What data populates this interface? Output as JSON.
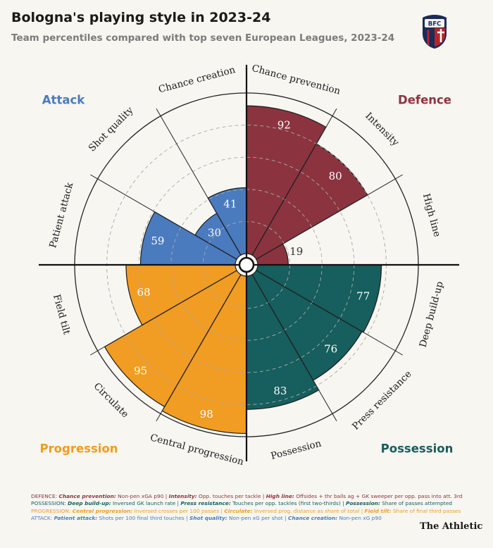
{
  "title": "Bologna's playing style in 2023-24",
  "subtitle": "Team percentiles compared with top seven European Leagues, 2023-24",
  "logo_text": "BFC 1909",
  "brand": "The Athletic",
  "colors": {
    "defence": "#8b3440",
    "possession": "#175e5e",
    "progression": "#f19c22",
    "attack": "#4a7bbf",
    "background": "#f7f6f1",
    "bar_text": "#ffffff"
  },
  "categories": [
    {
      "key": "attack",
      "label": "Attack"
    },
    {
      "key": "defence",
      "label": "Defence"
    },
    {
      "key": "progression",
      "label": "Progression"
    },
    {
      "key": "possession",
      "label": "Possession"
    }
  ],
  "chart_data": {
    "type": "polar-bar",
    "title": "Bologna's playing style in 2023-24",
    "subtitle": "Team percentiles compared with top seven European Leagues, 2023-24",
    "rlim": [
      0,
      100
    ],
    "gridlines": [
      20,
      40,
      60,
      80,
      100
    ],
    "grid": true,
    "series": [
      {
        "label": "Chance prevention",
        "category": "defence",
        "value": 92
      },
      {
        "label": "Intensity",
        "category": "defence",
        "value": 80
      },
      {
        "label": "High line",
        "category": "defence",
        "value": 19
      },
      {
        "label": "Deep build-up",
        "category": "possession",
        "value": 77
      },
      {
        "label": "Press resistance",
        "category": "possession",
        "value": 76
      },
      {
        "label": "Possession",
        "category": "possession",
        "value": 83
      },
      {
        "label": "Central progression",
        "category": "progression",
        "value": 98
      },
      {
        "label": "Circulate",
        "category": "progression",
        "value": 95
      },
      {
        "label": "Field tilt",
        "category": "progression",
        "value": 68
      },
      {
        "label": "Patient attack",
        "category": "attack",
        "value": 59
      },
      {
        "label": "Shot quality",
        "category": "attack",
        "value": 30
      },
      {
        "label": "Chance creation",
        "category": "attack",
        "value": 41
      }
    ]
  },
  "footnotes": [
    {
      "category": "defence",
      "color": "#8b3440",
      "parts": [
        {
          "t": "DEFENCE: ",
          "b": false
        },
        {
          "t": "Chance prevention:",
          "b": true
        },
        {
          "t": " Non-pen xGA p90 | ",
          "b": false
        },
        {
          "t": "Intensity:",
          "b": true
        },
        {
          "t": " Opp. touches per tackle | ",
          "b": false
        },
        {
          "t": "High line:",
          "b": true
        },
        {
          "t": " Offsides + thr balls ag + GK sweeper per opp. pass into att. 3rd",
          "b": false
        }
      ]
    },
    {
      "category": "possession",
      "color": "#175e5e",
      "parts": [
        {
          "t": "POSSESSION: ",
          "b": false
        },
        {
          "t": "Deep build-up:",
          "b": true
        },
        {
          "t": " Inversed GK launch rate | ",
          "b": false
        },
        {
          "t": "Press resistance:",
          "b": true
        },
        {
          "t": " Touches per opp. tackles (first two-thirds) | ",
          "b": false
        },
        {
          "t": "Possession:",
          "b": true
        },
        {
          "t": " Share of passes attempted",
          "b": false
        }
      ]
    },
    {
      "category": "progression",
      "color": "#f19c22",
      "parts": [
        {
          "t": "PROGRESSION: ",
          "b": false
        },
        {
          "t": "Central progression:",
          "b": true
        },
        {
          "t": " Inversed crosses per 100 passes | ",
          "b": false
        },
        {
          "t": "Circulate:",
          "b": true
        },
        {
          "t": " Inversed prog. distance as share of total | ",
          "b": false
        },
        {
          "t": "Field tilt:",
          "b": true
        },
        {
          "t": " Share of final third passes",
          "b": false
        }
      ]
    },
    {
      "category": "attack",
      "color": "#4a7bbf",
      "parts": [
        {
          "t": "ATTACK: ",
          "b": false
        },
        {
          "t": "Patient attack:",
          "b": true
        },
        {
          "t": " Shots per 100 final third touches | ",
          "b": false
        },
        {
          "t": "Shot quality:",
          "b": true
        },
        {
          "t": " Non-pen xG per shot | ",
          "b": false
        },
        {
          "t": "Chance creation:",
          "b": true
        },
        {
          "t": " Non-pen xG p90",
          "b": false
        }
      ]
    }
  ]
}
